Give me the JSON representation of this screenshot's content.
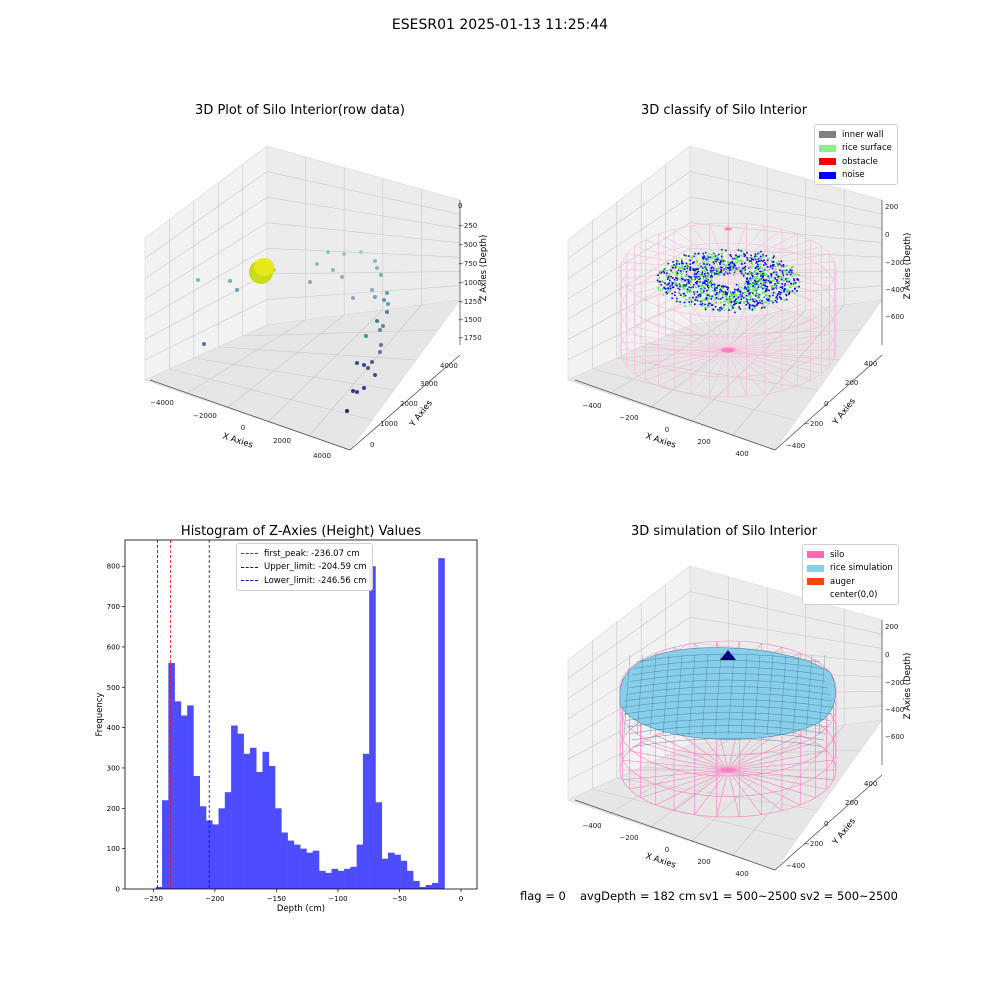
{
  "figure": {
    "title": "ESESR01 2025-01-13 11:25:44"
  },
  "raw_plot": {
    "title": "3D Plot of Silo Interior(row data)",
    "xlabel": "X Axies",
    "ylabel": "Y Axies",
    "zlabel": "Z Axies (Depth)",
    "xticks": [
      "−4000",
      "−2000",
      "0",
      "2000",
      "4000"
    ],
    "yticks": [
      "0",
      "1000",
      "2000",
      "3000",
      "4000"
    ],
    "zticks": [
      "0",
      "−250",
      "−500",
      "−750",
      "−1000",
      "−1250",
      "−1500",
      "−1750"
    ]
  },
  "classify_plot": {
    "title": "3D classify of Silo Interior",
    "xlabel": "X Axies",
    "ylabel": "Y Axies",
    "zlabel": "Z Axies (Depth)",
    "xticks": [
      "−400",
      "−200",
      "0",
      "200",
      "400"
    ],
    "yticks": [
      "−400",
      "−200",
      "0",
      "200",
      "400"
    ],
    "zticks": [
      "200",
      "0",
      "−200",
      "−400",
      "−600"
    ],
    "legend": [
      {
        "label": "inner wall",
        "color": "#808080"
      },
      {
        "label": "rice surface",
        "color": "#90ee90"
      },
      {
        "label": "obstacle",
        "color": "#ff0000"
      },
      {
        "label": "noise",
        "color": "#0000ff"
      }
    ]
  },
  "simulation_plot": {
    "title": "3D simulation of Silo Interior",
    "xlabel": "X Axies",
    "ylabel": "Y Axies",
    "zlabel": "Z Axies (Depth)",
    "xticks": [
      "−400",
      "−200",
      "0",
      "200",
      "400"
    ],
    "yticks": [
      "−400",
      "−200",
      "0",
      "200",
      "400"
    ],
    "zticks": [
      "200",
      "0",
      "−200",
      "−400",
      "−600"
    ],
    "legend": [
      {
        "label": "silo",
        "color": "#ff69b4"
      },
      {
        "label": "rice simulation",
        "color": "#87ceeb"
      },
      {
        "label": "auger",
        "color": "#ff4500"
      },
      {
        "label": "center(0,0)",
        "color": "#ffffff"
      }
    ]
  },
  "chart_data": {
    "type": "bar",
    "title": "Histogram of Z-Axies (Height) Values",
    "xlabel": "Depth (cm)",
    "ylabel": "Frequency",
    "xlim": [
      -273,
      13
    ],
    "ylim": [
      0,
      865
    ],
    "xticks": [
      -250,
      -200,
      -150,
      -100,
      -50,
      0
    ],
    "xtick_labels": [
      "−250",
      "−200",
      "−150",
      "−100",
      "−50",
      "0"
    ],
    "yticks": [
      0,
      100,
      200,
      300,
      400,
      500,
      600,
      700,
      800
    ],
    "yticks_labels": [
      "0",
      "100",
      "200",
      "300",
      "400",
      "500",
      "600",
      "700",
      "800"
    ],
    "bin_start": -248,
    "bin_width": 5.1,
    "bar_color": "#4d4dff",
    "values": [
      5,
      220,
      560,
      465,
      430,
      455,
      280,
      205,
      170,
      160,
      200,
      240,
      405,
      385,
      335,
      350,
      290,
      340,
      305,
      200,
      140,
      120,
      110,
      100,
      90,
      95,
      45,
      40,
      50,
      45,
      50,
      55,
      110,
      335,
      800,
      215,
      75,
      90,
      85,
      70,
      45,
      20,
      5,
      10,
      15,
      820
    ],
    "lines": [
      {
        "label": "first_peak: -236.07 cm",
        "x": -236.07,
        "color": "#ff0000"
      },
      {
        "label": "Upper_limit: -204.59 cm",
        "x": -204.59,
        "color": "#0000ff"
      },
      {
        "label": "Lower_limit: -246.56 cm",
        "x": -246.56,
        "color": "#0000ff"
      }
    ],
    "legend_position": "upper-center"
  },
  "status": {
    "flag": "flag = 0",
    "avg_depth": "avgDepth = 182 cm",
    "sv1": "sv1 = 500~2500",
    "sv2": "sv2 = 500~2500"
  }
}
